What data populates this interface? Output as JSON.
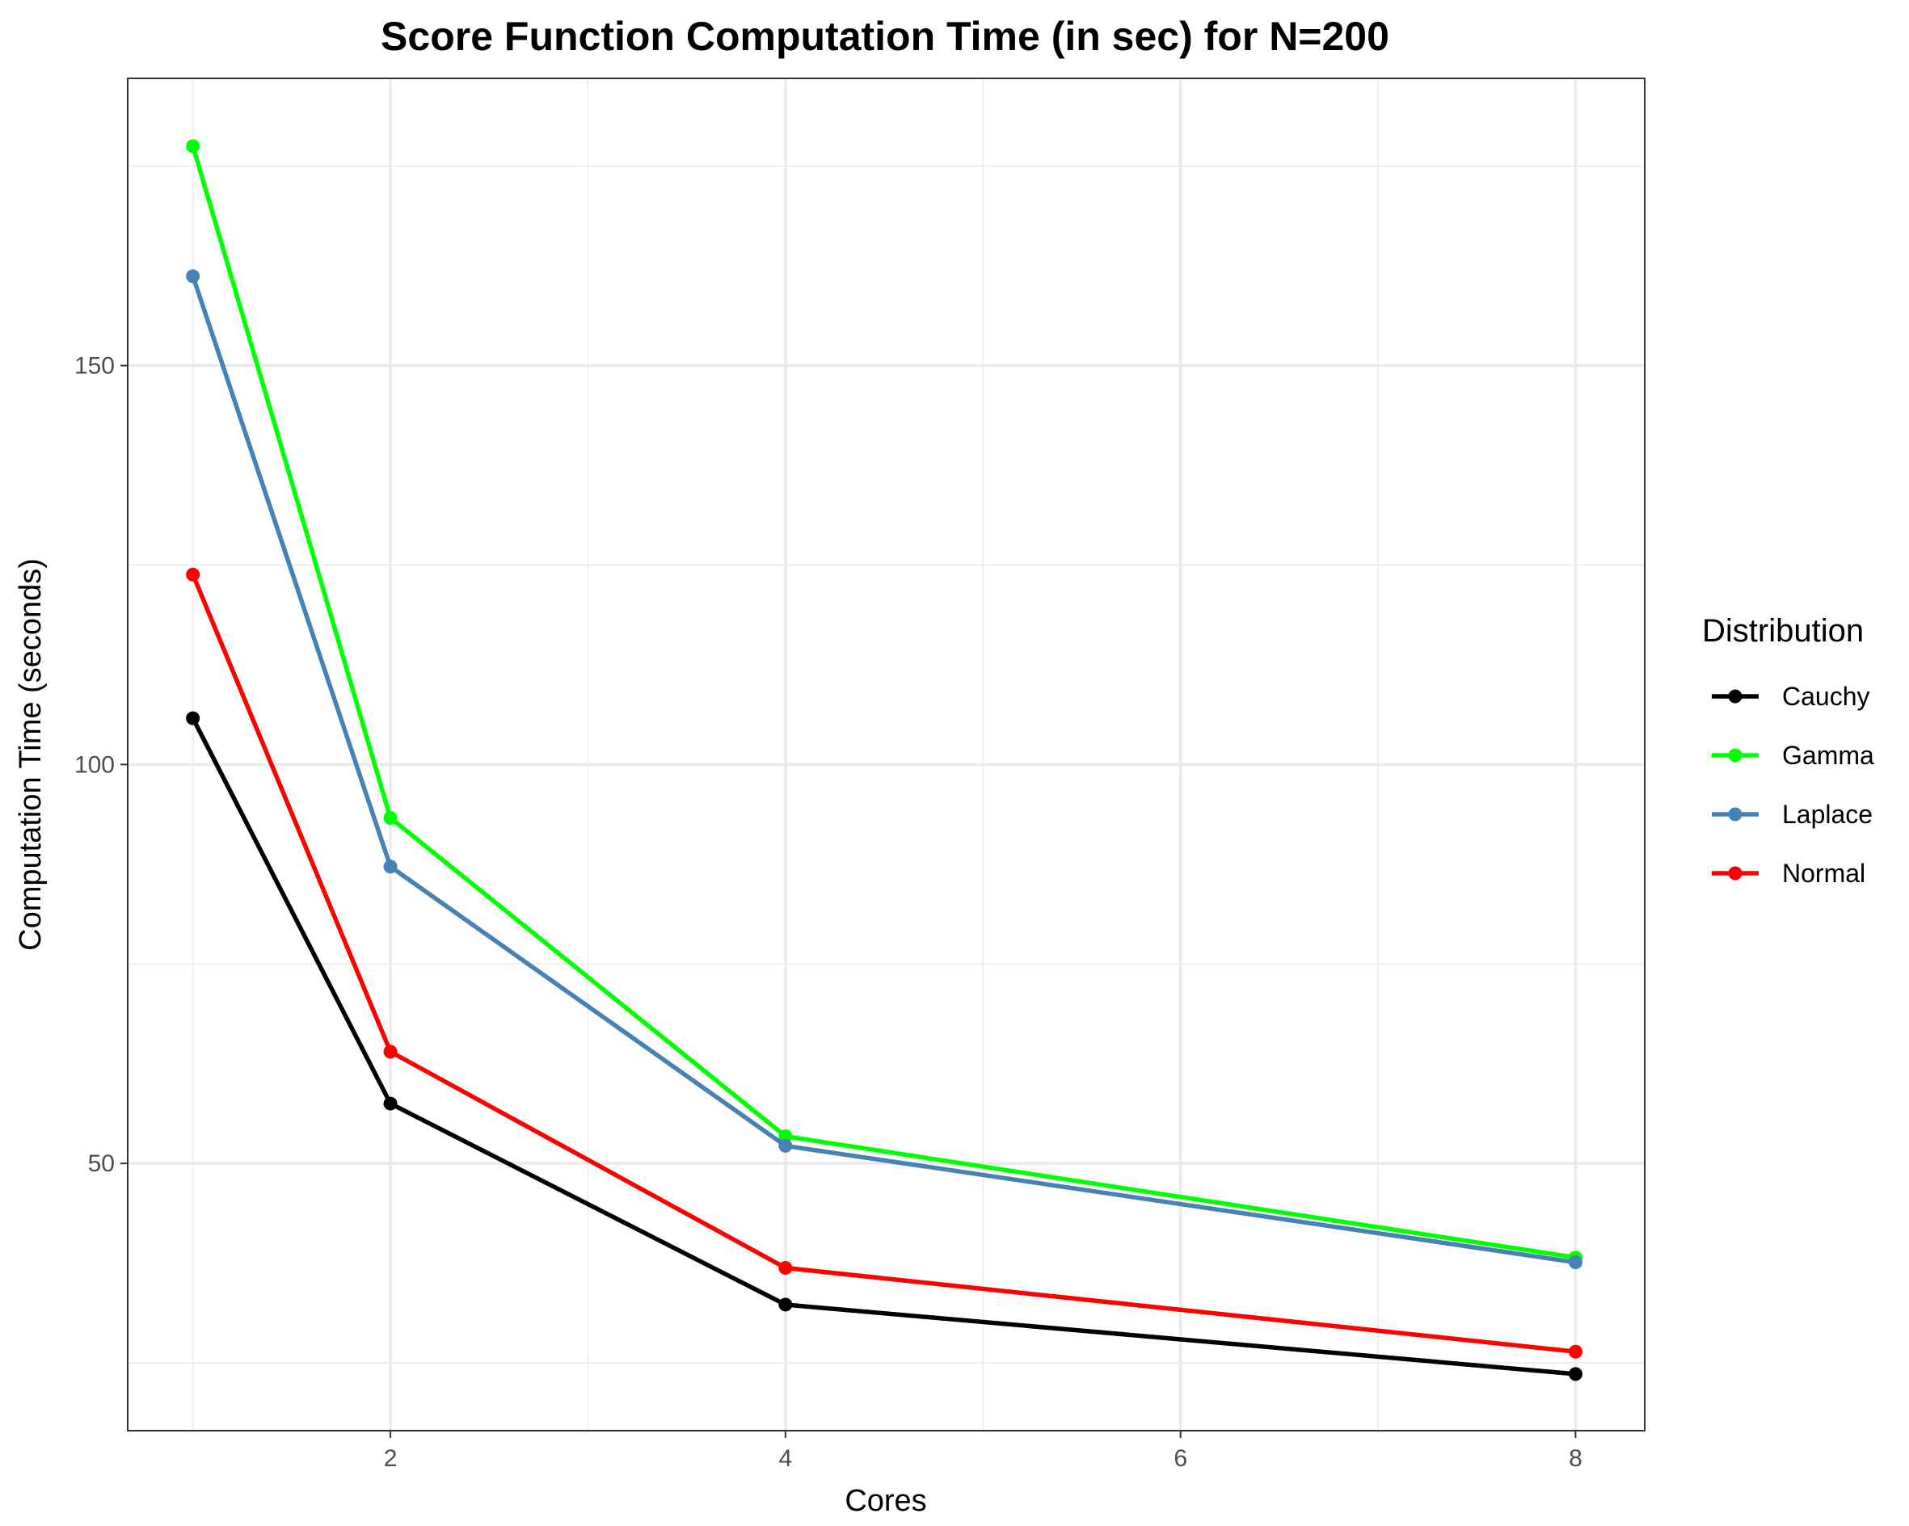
{
  "chart_data": {
    "type": "line",
    "title": "Score Function Computation Time (in sec) for N=200",
    "xlabel": "Cores",
    "ylabel": "Computation Time (seconds)",
    "xlim": [
      0.67,
      8.35
    ],
    "ylim": [
      16.5,
      186
    ],
    "x_ticks": [
      2,
      4,
      6,
      8
    ],
    "y_ticks": [
      50,
      100,
      150
    ],
    "x_minor": [
      1,
      3,
      5,
      7
    ],
    "y_minor": [
      25,
      75,
      125,
      175
    ],
    "grid": true,
    "legend": {
      "title": "Distribution",
      "position": "right"
    },
    "x": [
      1,
      2,
      4,
      8
    ],
    "series": [
      {
        "name": "Cauchy",
        "color": "#000000",
        "values": [
          105.8,
          57.5,
          32.3,
          23.6
        ]
      },
      {
        "name": "Gamma",
        "color": "#00ff00",
        "values": [
          177.5,
          93.3,
          53.4,
          38.2
        ]
      },
      {
        "name": "Laplace",
        "color": "#4682b4",
        "values": [
          161.2,
          87.2,
          52.2,
          37.6
        ]
      },
      {
        "name": "Normal",
        "color": "#ff0000",
        "values": [
          123.8,
          64.0,
          36.9,
          26.4
        ]
      }
    ]
  }
}
